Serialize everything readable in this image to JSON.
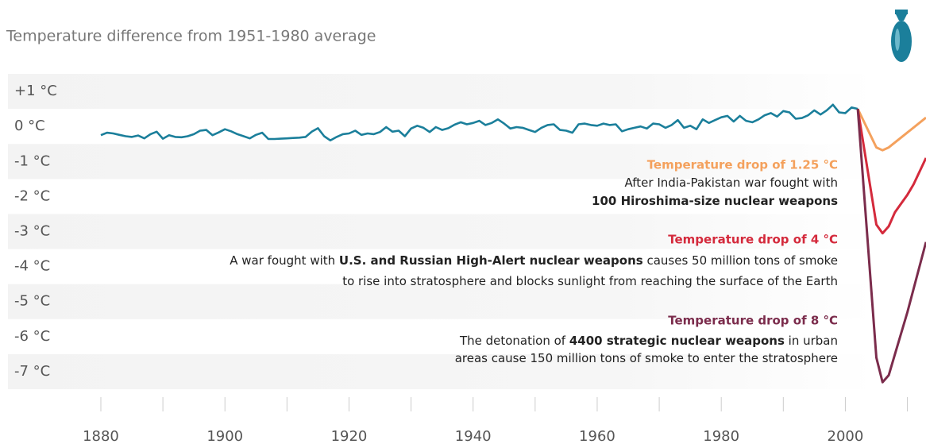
{
  "chart_data": {
    "type": "line",
    "title": "Temperature difference from 1951-1980 average",
    "xlim": [
      1864,
      2013
    ],
    "ylim": [
      -7.5,
      1.5
    ],
    "xticks": [
      1880,
      1900,
      1920,
      1940,
      1960,
      1980,
      2000
    ],
    "xminor_ticks": [
      1890,
      1910,
      1930,
      1950,
      1970,
      1990,
      2010
    ],
    "yticks": [
      {
        "value": 1,
        "label": "+1 °C"
      },
      {
        "value": 0,
        "label": "0 °C"
      },
      {
        "value": -1,
        "label": "-1 °C"
      },
      {
        "value": -2,
        "label": "-2 °C"
      },
      {
        "value": -3,
        "label": "-3 °C"
      },
      {
        "value": -4,
        "label": "-4 °C"
      },
      {
        "value": -5,
        "label": "-5 °C"
      },
      {
        "value": -6,
        "label": "-6 °C"
      },
      {
        "value": -7,
        "label": "-7 °C"
      }
    ],
    "series": [
      {
        "color": "#1b7f9b",
        "x": [
          1880,
          1881,
          1882,
          1883,
          1884,
          1885,
          1886,
          1887,
          1888,
          1889,
          1890,
          1891,
          1892,
          1893,
          1894,
          1895,
          1896,
          1897,
          1898,
          1899,
          1900,
          1901,
          1902,
          1903,
          1904,
          1905,
          1906,
          1907,
          1908,
          1909,
          1910,
          1911,
          1912,
          1913,
          1914,
          1915,
          1916,
          1917,
          1918,
          1919,
          1920,
          1921,
          1922,
          1923,
          1924,
          1925,
          1926,
          1927,
          1928,
          1929,
          1930,
          1931,
          1932,
          1933,
          1934,
          1935,
          1936,
          1937,
          1938,
          1939,
          1940,
          1941,
          1942,
          1943,
          1944,
          1945,
          1946,
          1947,
          1948,
          1949,
          1950,
          1951,
          1952,
          1953,
          1954,
          1955,
          1956,
          1957,
          1958,
          1959,
          1960,
          1961,
          1962,
          1963,
          1964,
          1965,
          1966,
          1967,
          1968,
          1969,
          1970,
          1971,
          1972,
          1973,
          1974,
          1975,
          1976,
          1977,
          1978,
          1979,
          1980,
          1981,
          1982,
          1983,
          1984,
          1985,
          1986,
          1987,
          1988,
          1989,
          1990,
          1991,
          1992,
          1993,
          1994,
          1995,
          1996,
          1997,
          1998,
          1999,
          2000,
          2001,
          2002
        ],
        "values": [
          -0.25,
          -0.18,
          -0.2,
          -0.24,
          -0.28,
          -0.3,
          -0.26,
          -0.34,
          -0.22,
          -0.15,
          -0.35,
          -0.25,
          -0.3,
          -0.31,
          -0.28,
          -0.22,
          -0.12,
          -0.1,
          -0.25,
          -0.17,
          -0.08,
          -0.14,
          -0.22,
          -0.28,
          -0.34,
          -0.24,
          -0.18,
          -0.36,
          -0.36,
          -0.35,
          -0.34,
          -0.33,
          -0.32,
          -0.3,
          -0.15,
          -0.05,
          -0.28,
          -0.4,
          -0.3,
          -0.22,
          -0.2,
          -0.12,
          -0.24,
          -0.2,
          -0.22,
          -0.16,
          -0.02,
          -0.15,
          -0.12,
          -0.28,
          -0.06,
          0.02,
          -0.04,
          -0.16,
          -0.02,
          -0.1,
          -0.05,
          0.05,
          0.12,
          0.06,
          0.1,
          0.16,
          0.04,
          0.1,
          0.2,
          0.08,
          -0.06,
          -0.02,
          -0.04,
          -0.1,
          -0.16,
          -0.04,
          0.04,
          0.06,
          -0.1,
          -0.12,
          -0.18,
          0.06,
          0.08,
          0.04,
          0.02,
          0.08,
          0.04,
          0.06,
          -0.14,
          -0.08,
          -0.04,
          0.0,
          -0.06,
          0.08,
          0.06,
          -0.04,
          0.04,
          0.18,
          -0.04,
          0.02,
          -0.08,
          0.2,
          0.1,
          0.18,
          0.26,
          0.3,
          0.14,
          0.3,
          0.16,
          0.12,
          0.2,
          0.32,
          0.38,
          0.28,
          0.44,
          0.4,
          0.22,
          0.24,
          0.32,
          0.46,
          0.34,
          0.46,
          0.62,
          0.4,
          0.38,
          0.54,
          0.5
        ]
      },
      {
        "color": "#f4a15d",
        "x": [
          2002,
          2005,
          2006,
          2007,
          2013
        ],
        "values": [
          0.5,
          -0.6,
          -0.68,
          -0.6,
          0.25
        ]
      },
      {
        "color": "#d42a3c",
        "x": [
          2002,
          2005,
          2006,
          2007,
          2008,
          2010,
          2011,
          2013
        ],
        "values": [
          0.5,
          -2.8,
          -3.05,
          -2.85,
          -2.45,
          -1.95,
          -1.65,
          -0.9
        ]
      },
      {
        "color": "#7b2c4c",
        "x": [
          2002,
          2005,
          2006,
          2007,
          2008,
          2010,
          2013
        ],
        "values": [
          0.5,
          -6.6,
          -7.3,
          -7.1,
          -6.5,
          -5.3,
          -3.3
        ]
      }
    ],
    "annotations": [
      {
        "title": "Temperature drop of 1.25 °C",
        "color": "#f4a15d",
        "lines": [
          [
            {
              "text": "After India-Pakistan war fought with"
            }
          ],
          [
            {
              "text": "100 Hiroshima-size nuclear weapons",
              "bold": true
            }
          ]
        ]
      },
      {
        "title": "Temperature drop of 4 °C",
        "color": "#d42a3c",
        "lines": [
          [
            {
              "text": "A war fought with "
            },
            {
              "text": "U.S. and Russian High-Alert nuclear weapons",
              "bold": true
            },
            {
              "text": " causes 50 million tons of smoke"
            }
          ],
          [
            {
              "text": "to rise into stratosphere and blocks sunlight from reaching the surface of the Earth"
            }
          ]
        ]
      },
      {
        "title": "Temperature drop of 8 °C",
        "color": "#7b2c4c",
        "lines": [
          [
            {
              "text": "The detonation of "
            },
            {
              "text": "4400 strategic nuclear weapons",
              "bold": true
            },
            {
              "text": " in urban"
            }
          ],
          [
            {
              "text": "areas cause 150 million tons of smoke to enter the stratosphere"
            }
          ]
        ]
      }
    ]
  }
}
